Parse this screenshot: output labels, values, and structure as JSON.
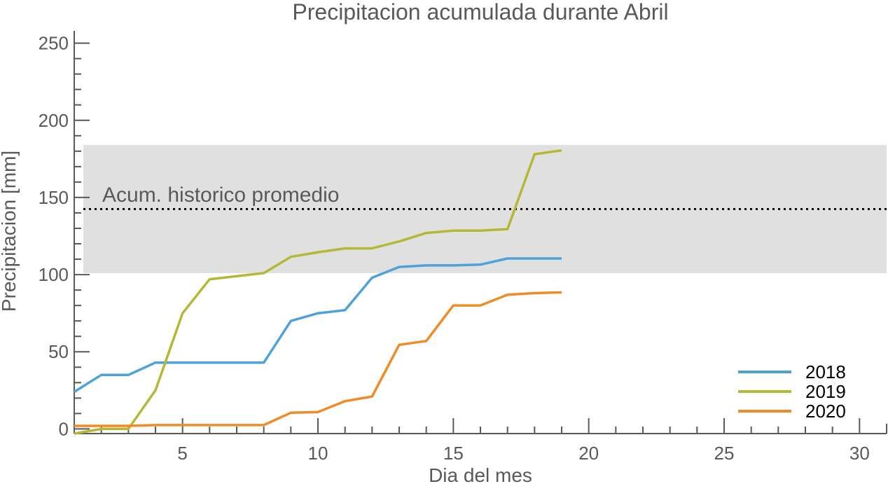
{
  "chart_data": {
    "type": "line",
    "title": "Precipitacion acumulada durante Abril",
    "xlabel": "Dia del mes",
    "ylabel": "Precipitacion [mm]",
    "xlim": [
      1,
      31
    ],
    "ylim": [
      -3,
      258
    ],
    "xticks": [
      5,
      10,
      15,
      20,
      25,
      30
    ],
    "yticks": [
      0,
      50,
      100,
      150,
      200,
      250
    ],
    "x_minor_step": 1,
    "y_minor_step": 10,
    "historic_band": {
      "low": 101,
      "high": 184,
      "color": "#e0e0e0"
    },
    "historic_mean": {
      "value": 142.5,
      "label": "Acum. historico promedio"
    },
    "legend_position": "bottom-right",
    "series": [
      {
        "name": "2018",
        "color": "#4da3d9",
        "x": [
          1,
          2,
          3,
          4,
          5,
          6,
          7,
          8,
          9,
          10,
          11,
          12,
          13,
          14,
          15,
          16,
          17,
          18,
          19
        ],
        "y": [
          24,
          35,
          35,
          43,
          43,
          43,
          43,
          43,
          70,
          75,
          77,
          98,
          105,
          106,
          106,
          106.5,
          110.5,
          110.5,
          110.5
        ]
      },
      {
        "name": "2019",
        "color": "#b5b835",
        "x": [
          1,
          2,
          3,
          4,
          5,
          6,
          7,
          8,
          9,
          10,
          11,
          12,
          13,
          14,
          15,
          16,
          17,
          18,
          19
        ],
        "y": [
          -3,
          0,
          0,
          25,
          75,
          97,
          99,
          101,
          111.5,
          114.5,
          117,
          117,
          121.5,
          127,
          128.5,
          128.5,
          129.5,
          178,
          180.5
        ]
      },
      {
        "name": "2020",
        "color": "#f08c28",
        "x": [
          1,
          2,
          3,
          4,
          5,
          6,
          7,
          8,
          9,
          10,
          11,
          12,
          13,
          14,
          15,
          16,
          17,
          18,
          19
        ],
        "y": [
          2,
          2,
          2,
          2.5,
          2.5,
          2.5,
          2.5,
          2.5,
          10.5,
          11,
          18,
          21,
          54.5,
          57,
          80,
          80,
          87,
          88,
          88.5
        ]
      }
    ]
  }
}
